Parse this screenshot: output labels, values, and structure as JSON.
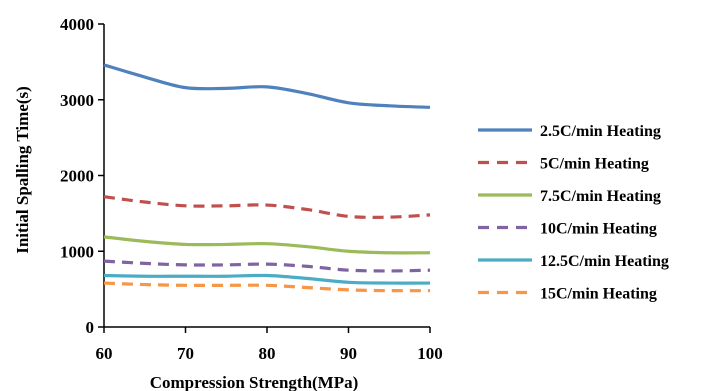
{
  "chart_data": {
    "type": "line",
    "title": "",
    "xlabel": "Compression Strength(MPa)",
    "ylabel": "Initial Spalling Time(s)",
    "xlim": [
      60,
      100
    ],
    "ylim": [
      0,
      4000
    ],
    "x_ticks": [
      60,
      70,
      80,
      90,
      100
    ],
    "y_ticks": [
      0,
      1000,
      2000,
      3000,
      4000
    ],
    "grid": false,
    "legend_position": "right",
    "x": [
      60,
      65,
      70,
      75,
      80,
      85,
      90,
      95,
      100
    ],
    "series": [
      {
        "name": "2.5C/min Heating",
        "color": "#4f81bd",
        "dash": "solid",
        "values": [
          3460,
          3300,
          3160,
          3150,
          3170,
          3080,
          2960,
          2920,
          2900
        ]
      },
      {
        "name": "5C/min Heating",
        "color": "#c0504d",
        "dash": "dashed",
        "values": [
          1720,
          1650,
          1600,
          1600,
          1610,
          1550,
          1460,
          1450,
          1480
        ]
      },
      {
        "name": "7.5C/min Heating",
        "color": "#9bbb59",
        "dash": "solid",
        "values": [
          1190,
          1130,
          1090,
          1090,
          1100,
          1060,
          1000,
          980,
          980
        ]
      },
      {
        "name": "10C/min Heating",
        "color": "#8064a2",
        "dash": "dashed",
        "values": [
          870,
          840,
          820,
          820,
          830,
          800,
          750,
          740,
          750
        ]
      },
      {
        "name": "12.5C/min Heating",
        "color": "#4bacc6",
        "dash": "solid",
        "values": [
          680,
          670,
          670,
          670,
          680,
          640,
          590,
          580,
          580
        ]
      },
      {
        "name": "15C/min Heating",
        "color": "#f79646",
        "dash": "dashed",
        "values": [
          580,
          560,
          550,
          550,
          550,
          520,
          490,
          480,
          480
        ]
      }
    ]
  }
}
